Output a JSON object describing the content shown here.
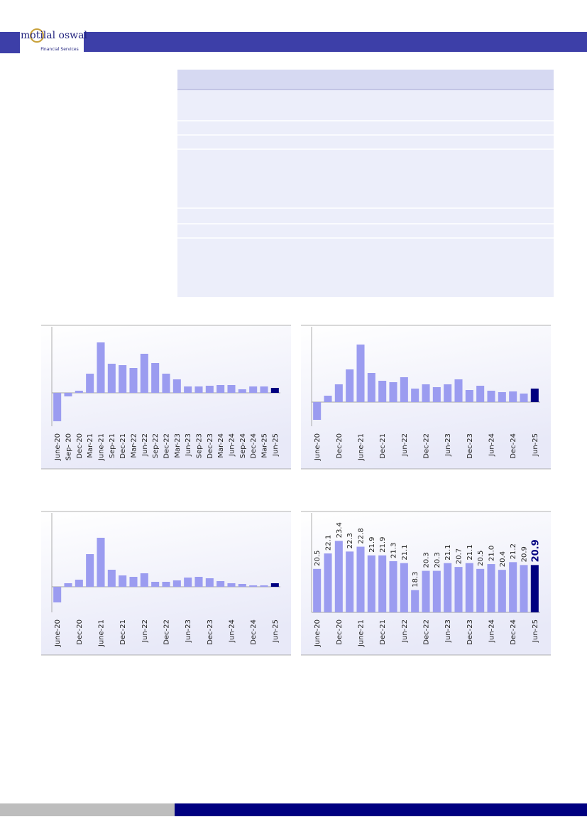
{
  "header": {
    "logo": "motilal oswal",
    "tagline": "Financial Services"
  },
  "chart_data": [
    {
      "type": "bar",
      "color": "#9b9cf0",
      "last_color": "#000080",
      "categories": [
        "June-20",
        "Sep- 20",
        "Dec-20",
        "Mar-21",
        "June-21",
        "Sep-21",
        "Dec-21",
        "Mar-22",
        "Jun-22",
        "Sep-22",
        "Dec-22",
        "Mar-23",
        "Jun-23",
        "Sep-23",
        "Dec-23",
        "Mar-24",
        "Jun-24",
        "Sep-24",
        "Dec-24",
        "Mar-25",
        "Jun-25"
      ],
      "values": [
        -40,
        -5,
        3,
        27,
        71,
        41,
        39,
        35,
        55,
        42,
        27,
        19,
        9,
        9,
        10,
        11,
        11,
        5,
        9,
        9,
        7
      ],
      "ylim": [
        -47,
        93
      ]
    },
    {
      "type": "bar",
      "color": "#9b9cf0",
      "last_color": "#000080",
      "categories": [
        "June-20",
        null,
        "Dec-20",
        null,
        "June-21",
        null,
        "Dec-21",
        null,
        "Jun-22",
        null,
        "Dec-22",
        null,
        "Jun-23",
        null,
        "Dec-23",
        null,
        "Jun-24",
        null,
        "Dec-24",
        null,
        "Jun-25"
      ],
      "values": [
        -25,
        9,
        25,
        46,
        81,
        41,
        30,
        28,
        35,
        19,
        25,
        21,
        25,
        32,
        17,
        23,
        16,
        14,
        15,
        12,
        19
      ],
      "ylim": [
        -34,
        106
      ]
    },
    {
      "type": "bar",
      "color": "#9b9cf0",
      "last_color": "#000080",
      "categories": [
        "June-20",
        null,
        "Dec-20",
        null,
        "June-21",
        null,
        "Dec-21",
        null,
        "Jun-22",
        null,
        "Dec-22",
        null,
        "Jun-23",
        null,
        "Dec-23",
        null,
        "Jun-24",
        null,
        "Dec-24",
        null,
        "Jun-25"
      ],
      "values": [
        -22,
        5,
        10,
        46,
        69,
        24,
        16,
        14,
        19,
        7,
        7,
        9,
        13,
        14,
        12,
        8,
        5,
        4,
        2,
        2,
        5
      ],
      "ylim": [
        -36,
        104
      ]
    },
    {
      "type": "bar",
      "color": "#9b9cf0",
      "last_color": "#000080",
      "categories": [
        "June-20",
        null,
        "Dec-20",
        null,
        "June-21",
        null,
        "Dec-21",
        null,
        "Jun-22",
        null,
        "Dec-22",
        null,
        "Jun-23",
        null,
        "Dec-23",
        null,
        "Jun-24",
        null,
        "Dec-24",
        null,
        "Jun-25"
      ],
      "values": [
        20.5,
        22.1,
        23.4,
        22.3,
        22.8,
        21.9,
        21.9,
        21.3,
        21.1,
        18.3,
        20.3,
        20.3,
        21.1,
        20.7,
        21.1,
        20.5,
        21.0,
        20.4,
        21.2,
        20.9,
        20.9
      ],
      "value_labels": [
        "20.5",
        "22.1",
        "23.4",
        "22.3",
        "22.8",
        "21.9",
        "21.9",
        "21.3",
        "21.1",
        "18.3",
        "20.3",
        "20.3",
        "21.1",
        "20.7",
        "21.1",
        "20.5",
        "21.0",
        "20.4",
        "21.2",
        "20.9",
        "20.9"
      ],
      "ylim": [
        16.0,
        26.3
      ]
    }
  ]
}
